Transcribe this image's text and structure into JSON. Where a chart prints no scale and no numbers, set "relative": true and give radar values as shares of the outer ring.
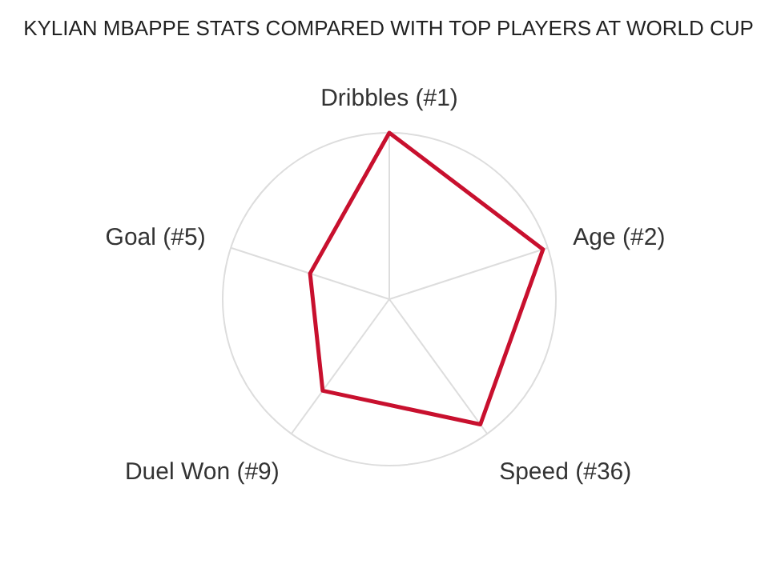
{
  "chart_data": {
    "type": "radar",
    "title": "KYLIAN MBAPPE STATS COMPARED WITH TOP PLAYERS AT WORLD CUP",
    "categories": [
      "Dribbles (#1)",
      "Age (#2)",
      "Speed (#36)",
      "Duel Won (#9)",
      "Goal (#5)"
    ],
    "relative": true,
    "grid": true,
    "series": [
      {
        "color": "#c8102e",
        "values": [
          1.0,
          0.97,
          0.93,
          0.68,
          0.5
        ]
      }
    ]
  }
}
